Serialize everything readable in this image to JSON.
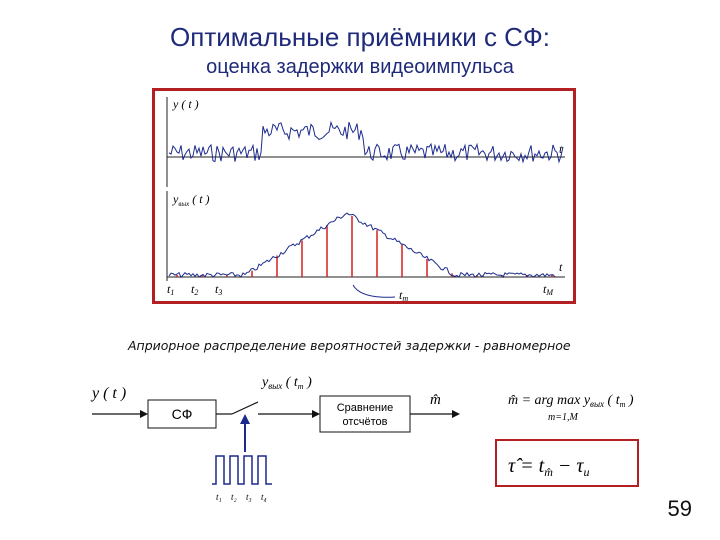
{
  "slide": {
    "title": "Оптимальные приёмники с СФ:",
    "subtitle": "оценка задержки видеоимпульса",
    "note": "Априорное распределение вероятностей задержки - равномерное",
    "page_number": "59"
  },
  "plot": {
    "top_label_var": "y",
    "top_label_arg": "( t )",
    "top_axis": "t",
    "bottom_label_var": "y",
    "bottom_label_sub": "вых",
    "bottom_label_arg": "( t )",
    "bottom_axis": "t",
    "t1": "t",
    "t1_sub": "1",
    "t2": "t",
    "t2_sub": "2",
    "t3": "t",
    "t3_sub": "3",
    "tm": "t",
    "tm_sub": "m",
    "tM": "t",
    "tM_sub": "M"
  },
  "block_diagram": {
    "input_label": "y ( t )",
    "sf_block": "СФ",
    "sample_label_var": "y",
    "sample_label_sub": "вых",
    "sample_label_arg_open": "( t",
    "sample_label_arg_sub": "m",
    "sample_label_arg_close": ")",
    "compare_line1": "Сравнение",
    "compare_line2": "отсчётов",
    "output_label": "m̂",
    "clock_t1": "t₁",
    "clock_t2": "t₂",
    "clock_t3": "t₃",
    "clock_t4": "t₄"
  },
  "formulas": {
    "argmax_lhs": "m̂ = arg max",
    "argmax_rhs_var": "y",
    "argmax_rhs_sub": "вых",
    "argmax_rhs_arg": "( t",
    "argmax_rhs_arg_sub": "m",
    "argmax_rhs_close": ")",
    "argmax_under": "m=1,M",
    "tau_lhs": "τ̂ = t",
    "tau_sub": "m̂",
    "tau_rhs": "− τ",
    "tau_rhs_sub": "и"
  },
  "colors": {
    "title": "#1f2a7a",
    "frame": "#b32024",
    "signal": "#1c2a8c",
    "sample": "#d42020"
  }
}
